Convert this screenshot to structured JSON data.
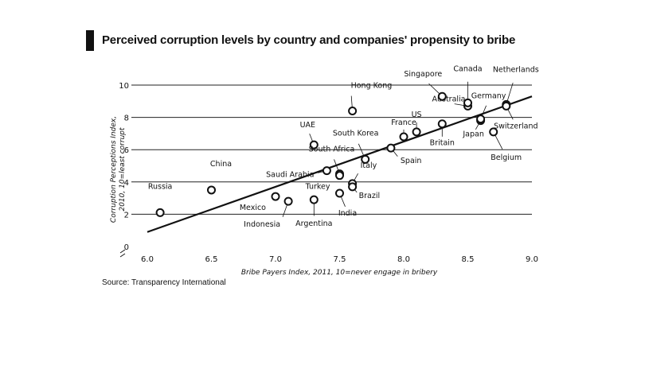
{
  "chart_data": {
    "type": "scatter",
    "title": "Perceived corruption levels by country and companies' propensity to bribe",
    "xlabel": "Bribe Payers Index, 2011, 10=never engage in bribery",
    "ylabel": "Corruption Perceptions Index, 2010, 10=least corrupt",
    "xlim": [
      6.0,
      9.0
    ],
    "ylim": [
      0,
      10
    ],
    "xticks": [
      "6.0",
      "6.5",
      "7.0",
      "7.5",
      "8.0",
      "8.5",
      "9.0"
    ],
    "yticks": [
      "0",
      "2",
      "4",
      "6",
      "8",
      "10"
    ],
    "grid": true,
    "trendline": {
      "x": [
        6.0,
        9.0
      ],
      "y": [
        0.9,
        9.3
      ]
    },
    "points": [
      {
        "name": "Russia",
        "x": 6.1,
        "y": 2.1
      },
      {
        "name": "China",
        "x": 6.5,
        "y": 3.5
      },
      {
        "name": "Mexico",
        "x": 7.0,
        "y": 3.1
      },
      {
        "name": "Indonesia",
        "x": 7.1,
        "y": 2.8
      },
      {
        "name": "Argentina",
        "x": 7.3,
        "y": 2.9
      },
      {
        "name": "UAE",
        "x": 7.3,
        "y": 6.3
      },
      {
        "name": "Saudi Arabia",
        "x": 7.4,
        "y": 4.7
      },
      {
        "name": "South Africa",
        "x": 7.5,
        "y": 4.5
      },
      {
        "name": "Turkey",
        "x": 7.5,
        "y": 4.4
      },
      {
        "name": "India",
        "x": 7.5,
        "y": 3.3
      },
      {
        "name": "Italy",
        "x": 7.6,
        "y": 3.9
      },
      {
        "name": "Brazil",
        "x": 7.6,
        "y": 3.7
      },
      {
        "name": "South Korea",
        "x": 7.7,
        "y": 5.4
      },
      {
        "name": "Hong Kong",
        "x": 7.6,
        "y": 8.4
      },
      {
        "name": "France",
        "x": 8.0,
        "y": 6.8
      },
      {
        "name": "Spain",
        "x": 7.9,
        "y": 6.1
      },
      {
        "name": "US",
        "x": 8.1,
        "y": 7.1
      },
      {
        "name": "Britain",
        "x": 8.3,
        "y": 7.6
      },
      {
        "name": "Australia",
        "x": 8.5,
        "y": 8.7
      },
      {
        "name": "Singapore",
        "x": 8.3,
        "y": 9.3
      },
      {
        "name": "Canada",
        "x": 8.5,
        "y": 8.9
      },
      {
        "name": "Japan",
        "x": 8.6,
        "y": 7.8
      },
      {
        "name": "Germany",
        "x": 8.6,
        "y": 7.9
      },
      {
        "name": "Netherlands",
        "x": 8.8,
        "y": 8.8
      },
      {
        "name": "Switzerland",
        "x": 8.8,
        "y": 8.7
      },
      {
        "name": "Belgium",
        "x": 8.7,
        "y": 7.1
      }
    ]
  },
  "source": "Source: Transparency International"
}
